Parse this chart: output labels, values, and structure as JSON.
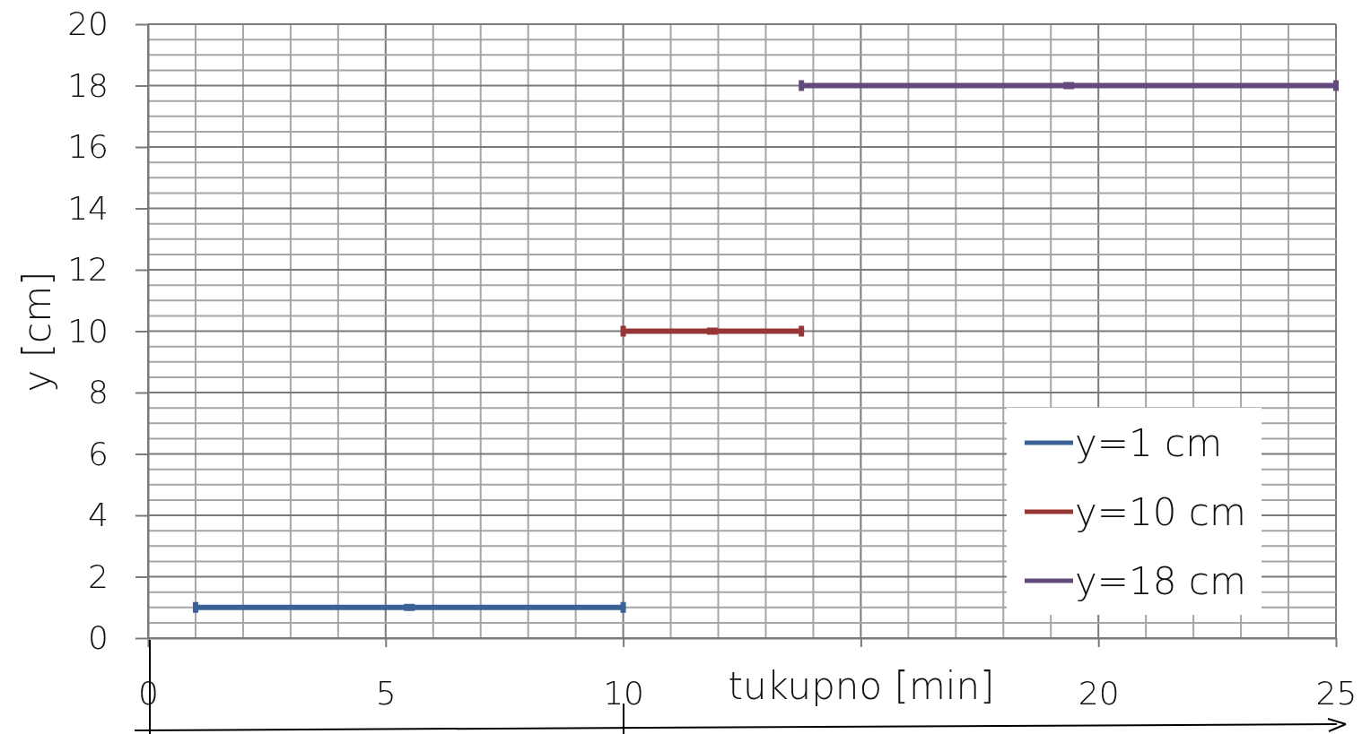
{
  "chart_data": {
    "type": "scatter",
    "xlabel": "tukupno [min]",
    "ylabel": "y [cm]",
    "xlim": [
      0,
      25
    ],
    "xticks": [
      0,
      5,
      10,
      {
        "value": 15,
        "label": null
      },
      20,
      25
    ],
    "ylim": [
      0,
      20
    ],
    "yticks": [
      0,
      2,
      4,
      6,
      8,
      10,
      12,
      14,
      16,
      18,
      20
    ],
    "grid": true,
    "legend": "bottom right",
    "series": [
      {
        "name": "y=1 cm",
        "color": "#3a6296",
        "x": [
          5.5
        ],
        "values": [
          1
        ],
        "xerrors": [
          4.5
        ]
      },
      {
        "name": "y=10 cm",
        "color": "#983636",
        "x": [
          11.875
        ],
        "values": [
          10
        ],
        "xerrors": [
          1.875
        ]
      },
      {
        "name": "y=18 cm",
        "color": "#644a7c",
        "x": [
          19.375
        ],
        "values": [
          18
        ],
        "xerrors": [
          5.625
        ]
      }
    ]
  }
}
